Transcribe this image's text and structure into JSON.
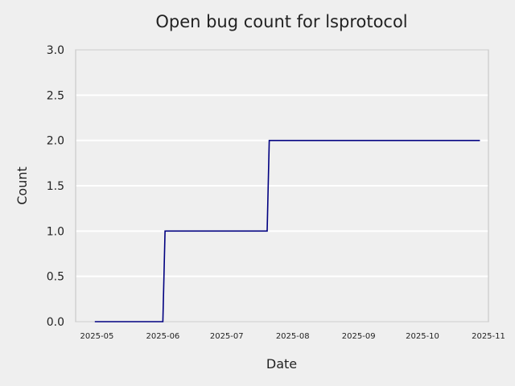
{
  "chart_data": {
    "type": "line",
    "title": "Open bug count for lsprotocol",
    "xlabel": "Date",
    "ylabel": "Count",
    "ylim": [
      0,
      3
    ],
    "xlim": [
      "2025-04-21",
      "2025-11-01"
    ],
    "y_ticks": [
      "0.0",
      "0.5",
      "1.0",
      "1.5",
      "2.0",
      "2.5",
      "3.0"
    ],
    "x_ticks": [
      {
        "date": "2025-05-01",
        "label": "2025-05"
      },
      {
        "date": "2025-06-01",
        "label": "2025-06"
      },
      {
        "date": "2025-07-01",
        "label": "2025-07"
      },
      {
        "date": "2025-08-01",
        "label": "2025-08"
      },
      {
        "date": "2025-09-01",
        "label": "2025-09"
      },
      {
        "date": "2025-10-01",
        "label": "2025-10"
      },
      {
        "date": "2025-11-01",
        "label": "2025-11"
      }
    ],
    "grid": true,
    "series": [
      {
        "color": "#000080",
        "points": [
          {
            "x": "2025-04-30",
            "y": 0
          },
          {
            "x": "2025-06-01",
            "y": 0
          },
          {
            "x": "2025-06-02",
            "y": 1
          },
          {
            "x": "2025-07-20",
            "y": 1
          },
          {
            "x": "2025-07-21",
            "y": 2
          },
          {
            "x": "2025-10-28",
            "y": 2
          }
        ]
      }
    ]
  }
}
